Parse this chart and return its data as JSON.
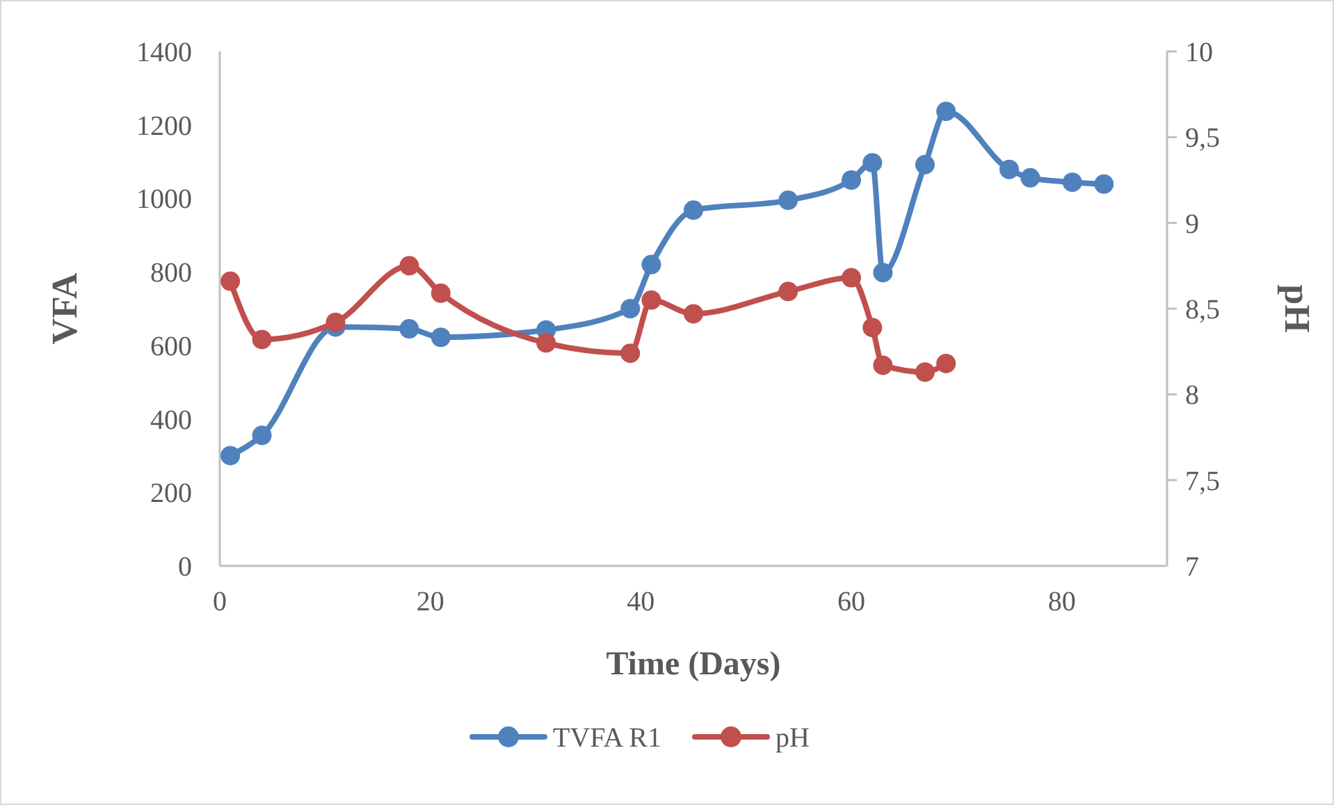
{
  "chart_data": {
    "type": "line",
    "xlabel": "Time (Days)",
    "ylabel": "VFA",
    "y2label": "pH",
    "xlim": [
      0,
      90
    ],
    "xticks": [
      0,
      20,
      40,
      60,
      80
    ],
    "ylim": [
      0,
      1400
    ],
    "yticks": [
      0,
      200,
      400,
      600,
      800,
      1000,
      1200,
      1400
    ],
    "y2lim": [
      7,
      10
    ],
    "y2ticks": [
      7,
      {
        "value": 7.5,
        "label": "7,5"
      },
      8,
      {
        "value": 8.5,
        "label": "8,5"
      },
      9,
      {
        "value": 9.5,
        "label": "9,5"
      },
      10
    ],
    "grid": false,
    "legend": "bottom",
    "marker": "circle",
    "line_style": "solid",
    "series": [
      {
        "name": "TVFA R1",
        "color": "#4f81bd",
        "x": [
          1,
          4,
          11,
          18,
          21,
          31,
          39,
          41,
          45,
          54,
          60,
          62,
          63,
          67,
          69,
          75,
          77,
          81,
          84
        ],
        "values": [
          300,
          355,
          650,
          645,
          622,
          642,
          700,
          820,
          968,
          995,
          1050,
          1097,
          798,
          1092,
          1237,
          1079,
          1056,
          1044,
          1039
        ]
      },
      {
        "name": "pH",
        "color": "#c0504d",
        "axis": "y2",
        "x": [
          1,
          4,
          11,
          18,
          21,
          31,
          39,
          41,
          45,
          54,
          60,
          62,
          63,
          67,
          69
        ],
        "values": [
          8.66,
          8.32,
          8.42,
          8.75,
          8.59,
          8.3,
          8.24,
          8.55,
          8.47,
          8.6,
          8.68,
          8.39,
          8.17,
          8.13,
          8.18
        ]
      }
    ]
  }
}
